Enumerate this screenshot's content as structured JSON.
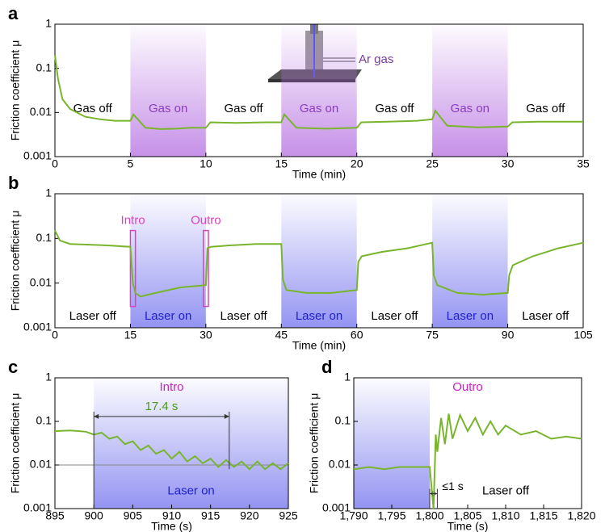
{
  "chart_data": [
    {
      "type": "line",
      "panel": "a",
      "xlabel": "Time (min)",
      "ylabel": "Friction coefficient μ",
      "log_y": true,
      "color": "#78b52d",
      "region_color": "#b36be0",
      "inset_label": "Ar gas",
      "xlim": [
        0,
        35
      ],
      "xticks": [
        0,
        5,
        10,
        15,
        20,
        25,
        30,
        35
      ],
      "ylim": [
        0.001,
        1
      ],
      "yticks": [
        0.001,
        0.01,
        0.1,
        1
      ],
      "segments": [
        {
          "start": 0,
          "end": 5,
          "label": "Gas off"
        },
        {
          "start": 5,
          "end": 10,
          "label": "Gas on",
          "shaded": true
        },
        {
          "start": 10,
          "end": 15,
          "label": "Gas off"
        },
        {
          "start": 15,
          "end": 20,
          "label": "Gas on",
          "shaded": true
        },
        {
          "start": 20,
          "end": 25,
          "label": "Gas off"
        },
        {
          "start": 25,
          "end": 30,
          "label": "Gas on",
          "shaded": true
        },
        {
          "start": 30,
          "end": 35,
          "label": "Gas off"
        }
      ],
      "x": [
        0,
        0.2,
        0.5,
        1,
        2,
        3,
        4,
        5,
        5.2,
        6,
        7,
        8,
        9,
        10,
        10.3,
        12,
        14,
        15,
        15.2,
        16,
        18,
        20,
        20.3,
        22,
        24,
        25,
        25.2,
        26,
        28,
        30,
        30.3,
        32,
        35
      ],
      "values": [
        0.2,
        0.06,
        0.02,
        0.012,
        0.008,
        0.007,
        0.0065,
        0.0065,
        0.009,
        0.0045,
        0.0042,
        0.0043,
        0.0045,
        0.0045,
        0.006,
        0.0058,
        0.006,
        0.006,
        0.009,
        0.0045,
        0.0043,
        0.0045,
        0.006,
        0.0062,
        0.0065,
        0.007,
        0.011,
        0.005,
        0.0046,
        0.0048,
        0.006,
        0.0062,
        0.0062
      ]
    },
    {
      "type": "line",
      "panel": "b",
      "xlabel": "Time (min)",
      "ylabel": "Friction coefficient μ",
      "log_y": true,
      "color": "#78b52d",
      "region_color": "#7070ee",
      "box_color": "#e040c0",
      "xlim": [
        0,
        105
      ],
      "xticks": [
        0,
        15,
        30,
        45,
        60,
        75,
        90,
        105
      ],
      "ylim": [
        0.001,
        1
      ],
      "yticks": [
        0.001,
        0.01,
        0.1,
        1
      ],
      "boxes": [
        {
          "label": "Intro",
          "start": 15,
          "end": 16
        },
        {
          "label": "Outro",
          "start": 29.5,
          "end": 30.5
        }
      ],
      "segments": [
        {
          "start": 0,
          "end": 15,
          "label": "Laser off"
        },
        {
          "start": 15,
          "end": 30,
          "label": "Laser on",
          "shaded": true
        },
        {
          "start": 30,
          "end": 45,
          "label": "Laser off"
        },
        {
          "start": 45,
          "end": 60,
          "label": "Laser on",
          "shaded": true
        },
        {
          "start": 60,
          "end": 75,
          "label": "Laser off"
        },
        {
          "start": 75,
          "end": 90,
          "label": "Laser on",
          "shaded": true
        },
        {
          "start": 90,
          "end": 105,
          "label": "Laser off"
        }
      ],
      "x": [
        0,
        1,
        3,
        10,
        15,
        15.5,
        16,
        17,
        20,
        25,
        30,
        30.3,
        31,
        35,
        40,
        45,
        45.3,
        46,
        50,
        55,
        60,
        60.3,
        61,
        65,
        70,
        75,
        75.3,
        76,
        80,
        85,
        90,
        90.3,
        91,
        95,
        100,
        105
      ],
      "values": [
        0.15,
        0.09,
        0.075,
        0.07,
        0.065,
        0.01,
        0.006,
        0.005,
        0.006,
        0.008,
        0.009,
        0.06,
        0.065,
        0.07,
        0.075,
        0.075,
        0.012,
        0.007,
        0.006,
        0.006,
        0.007,
        0.03,
        0.04,
        0.05,
        0.06,
        0.08,
        0.015,
        0.009,
        0.006,
        0.0055,
        0.006,
        0.015,
        0.025,
        0.04,
        0.06,
        0.08
      ]
    },
    {
      "type": "line",
      "panel": "c",
      "title": "Intro",
      "xlabel": "Time (s)",
      "ylabel": "Friction coefficient μ",
      "log_y": true,
      "color": "#78b52d",
      "region_color": "#7070ee",
      "title_color": "#d020c0",
      "hline": 0.01,
      "xlim": [
        895,
        925
      ],
      "xticks": [
        895,
        900,
        905,
        910,
        915,
        920,
        925
      ],
      "ylim": [
        0.001,
        1
      ],
      "yticks": [
        0.001,
        0.01,
        0.1,
        1
      ],
      "segments": [
        {
          "start": 900,
          "end": 925,
          "label": "Laser on",
          "shaded": true
        }
      ],
      "interval": {
        "label": "17.4 s",
        "start": 900,
        "end": 917.4
      },
      "x": [
        895,
        897,
        899,
        900,
        901,
        902,
        903,
        904,
        905,
        906,
        907,
        908,
        909,
        910,
        911,
        912,
        913,
        914,
        915,
        916,
        917,
        918,
        919,
        920,
        921,
        922,
        923,
        924,
        925
      ],
      "values": [
        0.06,
        0.062,
        0.058,
        0.05,
        0.055,
        0.04,
        0.045,
        0.03,
        0.035,
        0.022,
        0.028,
        0.018,
        0.022,
        0.014,
        0.02,
        0.012,
        0.016,
        0.011,
        0.014,
        0.009,
        0.013,
        0.009,
        0.012,
        0.008,
        0.012,
        0.008,
        0.011,
        0.008,
        0.011
      ]
    },
    {
      "type": "line",
      "panel": "d",
      "title": "Outro",
      "xlabel": "Time (s)",
      "ylabel": "Friction coefficient μ",
      "log_y": true,
      "color": "#78b52d",
      "region_color": "#7070ee",
      "title_color": "#d020c0",
      "xlim": [
        1790,
        1820
      ],
      "xticks": [
        {
          "value": 1790,
          "label": "1,790"
        },
        {
          "value": 1795,
          "label": "1,795"
        },
        {
          "value": 1800,
          "label": "1,800"
        },
        {
          "value": 1805,
          "label": "1,805"
        },
        {
          "value": 1810,
          "label": "1,810"
        },
        {
          "value": 1815,
          "label": "1,815"
        },
        {
          "value": 1820,
          "label": "1,820"
        }
      ],
      "ylim": [
        0.001,
        1
      ],
      "yticks": [
        0.001,
        0.01,
        0.1,
        1
      ],
      "segments": [
        {
          "start": 1790,
          "end": 1800,
          "shaded": true
        },
        {
          "start": 1800,
          "end": 1820,
          "label": "Laser off"
        }
      ],
      "interval": {
        "label": "≤1 s",
        "start": 1800,
        "end": 1801
      },
      "x": [
        1790,
        1792,
        1794,
        1796,
        1798,
        1800,
        1800.5,
        1800.8,
        1801,
        1801.5,
        1802,
        1802.5,
        1803,
        1804,
        1805,
        1806,
        1807,
        1808,
        1809,
        1810,
        1812,
        1814,
        1816,
        1818,
        1820
      ],
      "values": [
        0.008,
        0.009,
        0.008,
        0.009,
        0.009,
        0.009,
        0.001,
        0.05,
        0.02,
        0.12,
        0.03,
        0.15,
        0.04,
        0.14,
        0.06,
        0.12,
        0.05,
        0.1,
        0.05,
        0.08,
        0.05,
        0.06,
        0.04,
        0.045,
        0.04
      ]
    }
  ]
}
